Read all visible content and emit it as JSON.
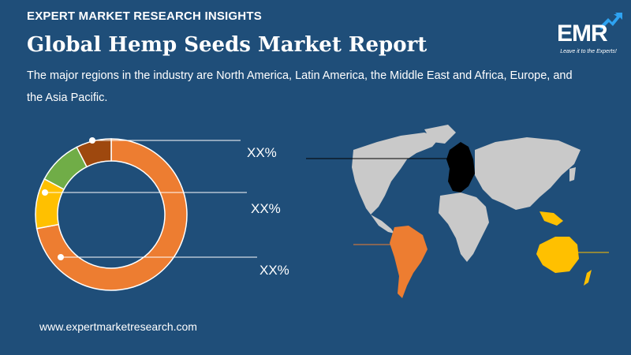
{
  "header": {
    "eyebrow": "EXPERT MARKET RESEARCH INSIGHTS",
    "title": "Global Hemp Seeds Market Report",
    "subtitle": "The major regions in the industry are North America, Latin America, the Middle East and Africa, Europe, and the Asia Pacific."
  },
  "logo": {
    "text": "EMR",
    "tagline": "Leave it to the Experts!"
  },
  "chart_data": {
    "type": "pie",
    "style": "donut",
    "slices": [
      {
        "value": 67,
        "color": "#ed7d31"
      },
      {
        "value": 10,
        "color": "#ffc000"
      },
      {
        "value": 9,
        "color": "#70ad47"
      },
      {
        "value": 7,
        "color": "#9e480e"
      }
    ],
    "labels": [
      "XX%",
      "XX%",
      "XX%"
    ],
    "colors": {
      "orange": "#ed7d31",
      "yellow": "#ffc000",
      "green": "#70ad47",
      "brown": "#9e480e"
    }
  },
  "map": {
    "highlight_colors": {
      "europe": "#000000",
      "latin_america": "#ed7d31",
      "asia_pacific": "#ffc000",
      "other": "#c9c9c9"
    }
  },
  "footer": {
    "url": "www.expertmarketresearch.com"
  }
}
